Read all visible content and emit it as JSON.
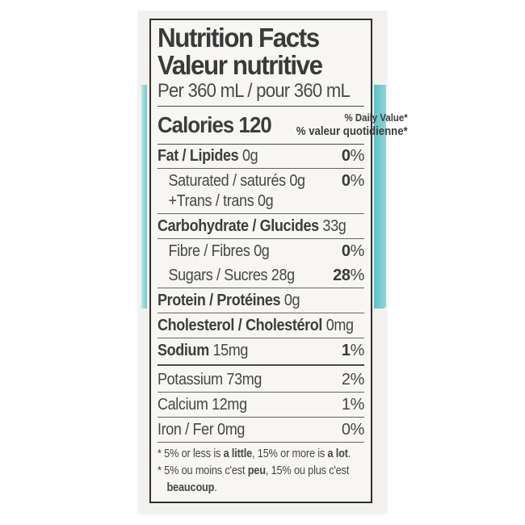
{
  "colors": {
    "teal_band": "#74c8ca",
    "label_background": "#f7f6f3",
    "page_background": "#ffffff",
    "text": "#3d3d3d",
    "bar": "#4a4a4a"
  },
  "label": {
    "title_en": "Nutrition Facts",
    "title_fr": "Valeur nutritive",
    "serving": "Per 360 mL / pour 360 mL",
    "calories_label": "Calories",
    "calories_value": "120",
    "dv_header_en": "% Daily Value*",
    "dv_header_fr": "% valeur quotidienne*",
    "rows": [
      {
        "bold": "Fat / Lipides",
        "rest": " 0g",
        "pct_num": "0",
        "pct_sign": "%"
      },
      {
        "line1": "Saturated / saturés 0g",
        "line2": "+Trans / trans 0g",
        "pct_num": "0",
        "pct_sign": "%"
      },
      {
        "bold": "Carbohydrate / Glucides",
        "rest": " 33g"
      },
      {
        "rest": "Fibre / Fibres 0g",
        "pct_num": "0",
        "pct_sign": "%"
      },
      {
        "rest": "Sugars / Sucres 28g",
        "pct_num": "28",
        "pct_sign": "%"
      },
      {
        "bold": "Protein / Protéines",
        "rest": " 0g"
      },
      {
        "bold": "Cholesterol / Cholestérol",
        "rest": " 0mg"
      },
      {
        "bold": "Sodium",
        "rest": " 15mg",
        "pct_num": "1",
        "pct_sign": "%"
      },
      {
        "rest": "Potassium 73mg",
        "pct_num": "2",
        "pct_sign": "%"
      },
      {
        "rest": "Calcium 12mg",
        "pct_num": "1",
        "pct_sign": "%"
      },
      {
        "rest": "Iron / Fer 0mg",
        "pct_num": "0",
        "pct_sign": "%"
      }
    ],
    "footnote_en": {
      "prefix": "* 5% or less is ",
      "bold1": "a little",
      "mid": ", 15% or more is ",
      "bold2": "a lot",
      "suffix": "."
    },
    "footnote_fr": {
      "prefix": "* 5% ou moins c'est ",
      "bold1": "peu",
      "mid": ", 15% ou plus c'est",
      "bold2": "beaucoup",
      "suffix": "."
    }
  }
}
